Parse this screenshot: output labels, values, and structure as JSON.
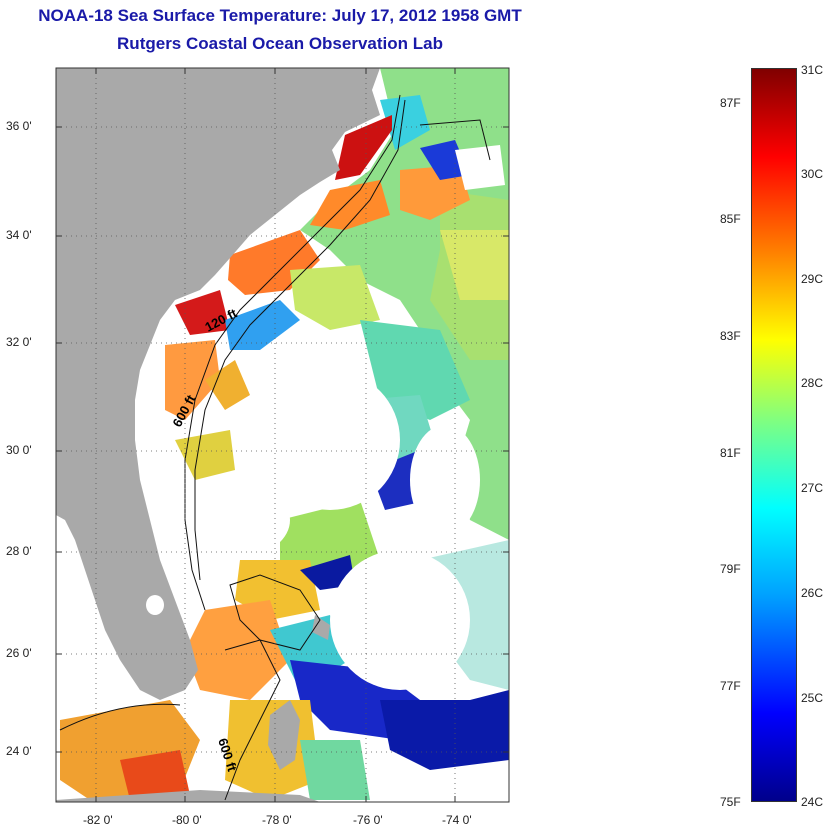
{
  "title": "NOAA-18 Sea Surface Temperature:  July 17, 2012 1958 GMT",
  "subtitle": "Rutgers Coastal Ocean Observation Lab",
  "lat_labels": [
    "36 0'",
    "34 0'",
    "32 0'",
    "30 0'",
    "28 0'",
    "26 0'",
    "24 0'"
  ],
  "lon_labels": [
    "-82 0'",
    "-80 0'",
    "-78 0'",
    "-76 0'",
    "-74 0'"
  ],
  "contour_labels": [
    "120 ft",
    "600 ft",
    "600 ft"
  ],
  "colorbar": {
    "celsius": [
      "31C",
      "30C",
      "29C",
      "28C",
      "27C",
      "26C",
      "25C",
      "24C"
    ],
    "fahrenheit": [
      "87F",
      "85F",
      "83F",
      "81F",
      "79F",
      "77F",
      "75F"
    ],
    "range_c": [
      24,
      31
    ],
    "colors": [
      "#00008b",
      "#0000ff",
      "#00a0ff",
      "#00ffff",
      "#80ff80",
      "#ffff00",
      "#ff8000",
      "#ff0000",
      "#800000"
    ]
  },
  "colors": {
    "land": "#a9a9a9",
    "cloud": "#ffffff",
    "title": "#1a1aa8"
  }
}
